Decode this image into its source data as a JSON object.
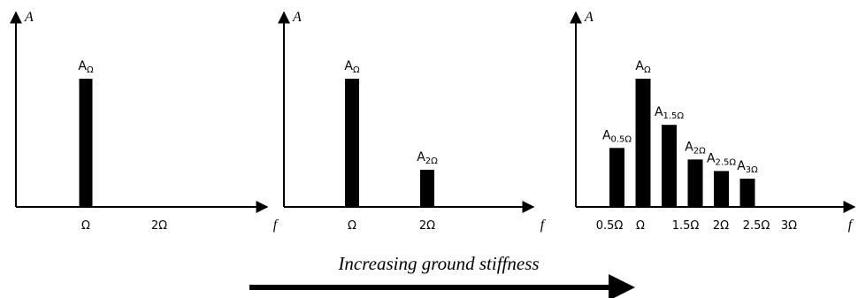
{
  "chart_data": [
    {
      "type": "bar",
      "xlabel": "f",
      "ylabel": "A",
      "x_ticks": [
        "Ω",
        "2Ω"
      ],
      "bars": [
        {
          "x": 1.0,
          "value": 1.0,
          "label": "A",
          "sub": "Ω"
        }
      ]
    },
    {
      "type": "bar",
      "xlabel": "f",
      "ylabel": "A",
      "x_ticks": [
        "Ω",
        "2Ω"
      ],
      "bars": [
        {
          "x": 1.0,
          "value": 1.0,
          "label": "A",
          "sub": "Ω"
        },
        {
          "x": 2.0,
          "value": 0.29,
          "label": "A",
          "sub": "2Ω"
        }
      ]
    },
    {
      "type": "bar",
      "xlabel": "f",
      "ylabel": "A",
      "x_ticks": [
        "0.5Ω",
        "Ω",
        "1.5Ω",
        "2Ω",
        "2.5Ω",
        "3Ω"
      ],
      "bars": [
        {
          "x": 0.5,
          "value": 0.46,
          "label": "A",
          "sub": "0.5Ω"
        },
        {
          "x": 1.0,
          "value": 1.0,
          "label": "A",
          "sub": "Ω"
        },
        {
          "x": 1.5,
          "value": 0.64,
          "label": "A",
          "sub": "1.5Ω"
        },
        {
          "x": 2.0,
          "value": 0.37,
          "label": "A",
          "sub": "2Ω"
        },
        {
          "x": 2.5,
          "value": 0.28,
          "label": "A",
          "sub": "2.5Ω"
        },
        {
          "x": 3.0,
          "value": 0.22,
          "label": "A",
          "sub": "3Ω"
        }
      ]
    }
  ],
  "caption": "Increasing ground stiffness"
}
